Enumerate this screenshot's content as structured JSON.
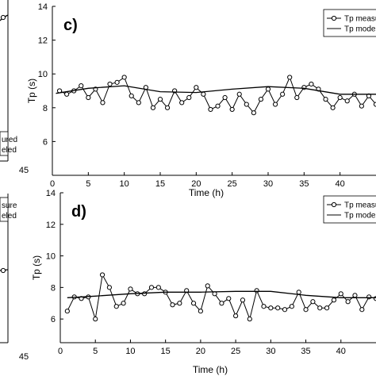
{
  "left_fragments": {
    "top_legend_1": "ured",
    "top_legend_2": "eled",
    "top_x_tick": "45",
    "bottom_legend_1": "sure",
    "bottom_legend_2": "eled",
    "bottom_x_tick": "45"
  },
  "chart_data": [
    {
      "type": "line",
      "panel_label": "c)",
      "xlabel": "Time (h)",
      "ylabel": "Tp (s)",
      "xlim": [
        0,
        45
      ],
      "ylim": [
        4,
        14
      ],
      "xticks": [
        0,
        5,
        10,
        15,
        20,
        25,
        30,
        35,
        40
      ],
      "yticks": [
        6,
        8,
        10,
        12,
        14
      ],
      "legend_position": "top-right",
      "series": [
        {
          "name": "Tp measured",
          "style": "line-with-circle-markers",
          "x": [
            1,
            2,
            3,
            4,
            5,
            6,
            7,
            8,
            9,
            10,
            11,
            12,
            13,
            14,
            15,
            16,
            17,
            18,
            19,
            20,
            21,
            22,
            23,
            24,
            25,
            26,
            27,
            28,
            29,
            30,
            31,
            32,
            33,
            34,
            35,
            36,
            37,
            38,
            39,
            40,
            41,
            42,
            43,
            44,
            45
          ],
          "values": [
            9.0,
            8.8,
            9.0,
            9.3,
            8.6,
            9.1,
            8.3,
            9.4,
            9.5,
            9.8,
            8.7,
            8.3,
            9.2,
            8.0,
            8.5,
            8.0,
            9.0,
            8.3,
            8.6,
            9.2,
            8.8,
            7.9,
            8.1,
            8.6,
            7.9,
            8.8,
            8.2,
            7.7,
            8.5,
            9.1,
            8.2,
            8.8,
            9.8,
            8.6,
            9.2,
            9.4,
            9.1,
            8.5,
            8.0,
            8.6,
            8.4,
            8.8,
            8.1,
            8.7,
            8.2
          ]
        },
        {
          "name": "Tp modeled",
          "style": "line",
          "x": [
            0.5,
            5,
            10,
            15,
            20,
            25,
            30,
            35,
            40,
            45
          ],
          "values": [
            8.85,
            9.15,
            9.3,
            8.95,
            8.9,
            9.1,
            9.25,
            9.15,
            8.8,
            8.8
          ]
        }
      ]
    },
    {
      "type": "line",
      "panel_label": "d)",
      "xlabel": "Time (h)",
      "ylabel": "Tp (s)",
      "xlim": [
        0,
        45
      ],
      "ylim": [
        4.5,
        14
      ],
      "xticks": [
        0,
        5,
        10,
        15,
        20,
        25,
        30,
        35,
        40
      ],
      "yticks": [
        6,
        8,
        10,
        12,
        14
      ],
      "legend_position": "top-right",
      "series": [
        {
          "name": "Tp measured",
          "style": "line-with-circle-markers",
          "x": [
            1,
            2,
            3,
            4,
            5,
            6,
            7,
            8,
            9,
            10,
            11,
            12,
            13,
            14,
            15,
            16,
            17,
            18,
            19,
            20,
            21,
            22,
            23,
            24,
            25,
            26,
            27,
            28,
            29,
            30,
            31,
            32,
            33,
            34,
            35,
            36,
            37,
            38,
            39,
            40,
            41,
            42,
            43,
            44,
            45
          ],
          "values": [
            6.5,
            7.4,
            7.3,
            7.4,
            6.0,
            8.8,
            8.0,
            6.8,
            7.0,
            7.9,
            7.6,
            7.6,
            8.0,
            8.0,
            7.7,
            6.9,
            7.0,
            7.8,
            7.0,
            6.5,
            8.1,
            7.6,
            7.0,
            7.3,
            6.2,
            7.2,
            6.0,
            7.8,
            6.8,
            6.7,
            6.7,
            6.6,
            6.8,
            7.7,
            6.6,
            7.1,
            6.7,
            6.7,
            7.2,
            7.6,
            7.1,
            7.5,
            6.6,
            7.4,
            7.3
          ]
        },
        {
          "name": "Tp modeled",
          "style": "line",
          "x": [
            1,
            5,
            10,
            15,
            20,
            25,
            30,
            35,
            40,
            45
          ],
          "values": [
            7.35,
            7.45,
            7.6,
            7.7,
            7.7,
            7.75,
            7.75,
            7.5,
            7.35,
            7.35
          ]
        }
      ]
    }
  ]
}
